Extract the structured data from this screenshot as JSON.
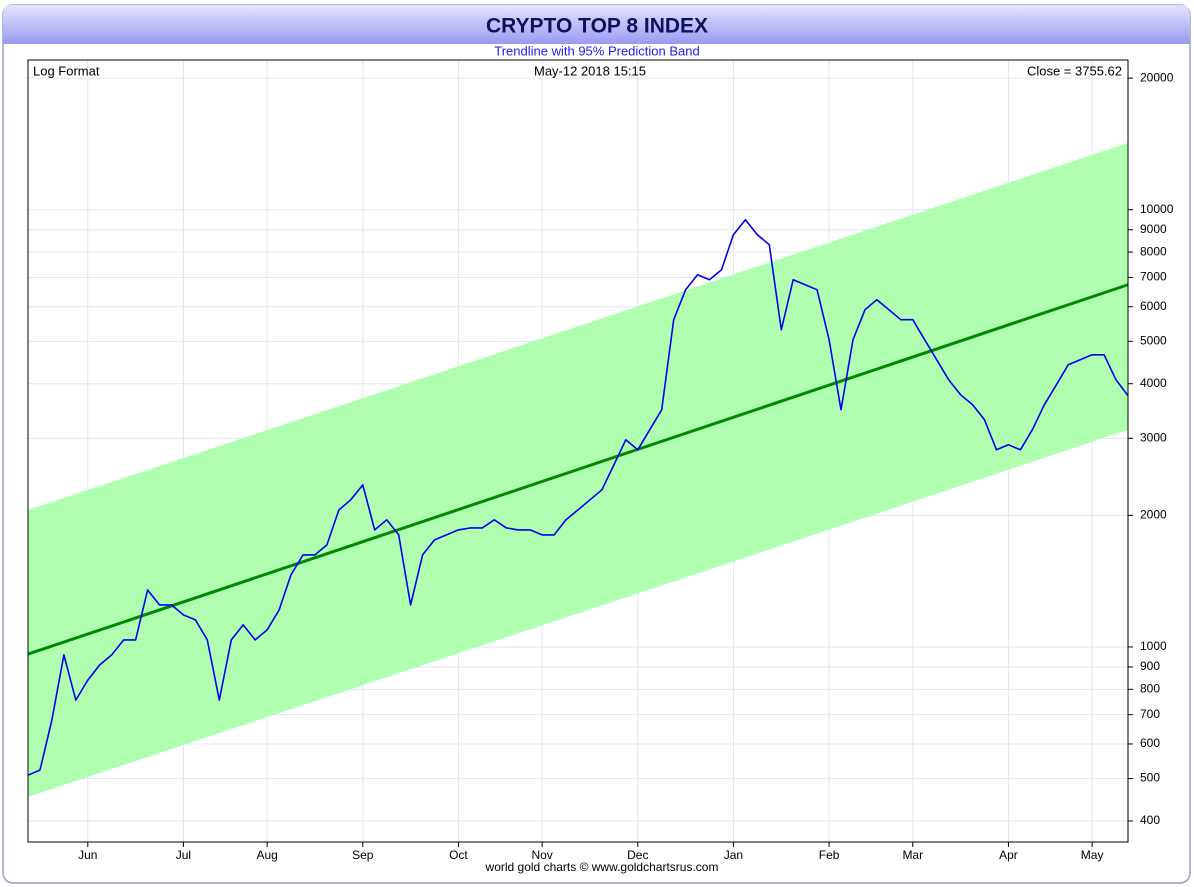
{
  "chart_data": {
    "type": "line",
    "title": "CRYPTO TOP 8 INDEX",
    "subtitle": "Trendline with 95% Prediction Band",
    "annotations": {
      "left": "Log Format",
      "center": "May-12  2018 15:15",
      "right": "Close = 3755.62"
    },
    "footer": "world gold charts © www.goldchartsrus.com",
    "categories": [
      null,
      null,
      null,
      null,
      null,
      "Jun",
      null,
      null,
      null,
      null,
      null,
      null,
      null,
      "Jul",
      null,
      null,
      null,
      null,
      null,
      null,
      "Aug",
      null,
      null,
      null,
      null,
      null,
      null,
      null,
      "Sep",
      null,
      null,
      null,
      null,
      null,
      null,
      null,
      "Oct",
      null,
      null,
      null,
      null,
      null,
      null,
      "Nov",
      null,
      null,
      null,
      null,
      null,
      null,
      null,
      "Dec",
      null,
      null,
      null,
      null,
      null,
      null,
      null,
      "Jan",
      null,
      null,
      null,
      null,
      null,
      null,
      null,
      "Feb",
      null,
      null,
      null,
      null,
      null,
      null,
      "Mar",
      null,
      null,
      null,
      null,
      null,
      null,
      null,
      "Apr",
      null,
      null,
      null,
      null,
      null,
      null,
      "May",
      null,
      null,
      null
    ],
    "series": [
      {
        "color": "#0000ee",
        "values": [
          509,
          523,
          681,
          959,
          756,
          840,
          910,
          959,
          1038,
          1038,
          1350,
          1248,
          1248,
          1184,
          1153,
          1038,
          756,
          1038,
          1123,
          1038,
          1094,
          1215,
          1462,
          1624,
          1624,
          1712,
          2058,
          2170,
          2348,
          1852,
          1953,
          1804,
          1248,
          1624,
          1757,
          1804,
          1852,
          1872,
          1872,
          1953,
          1872,
          1852,
          1852,
          1804,
          1804,
          1953,
          2058,
          2170,
          2288,
          2609,
          2977,
          2824,
          3138,
          3486,
          5602,
          6559,
          7100,
          6916,
          7290,
          8767,
          9487,
          8767,
          8316,
          5313,
          6916,
          6736,
          6559,
          5041,
          3486,
          5041,
          5905,
          6225,
          5905,
          5602,
          5602,
          5041,
          4537,
          4083,
          3773,
          3579,
          3307,
          2824,
          2899,
          2824,
          3138,
          3579,
          3976,
          4418,
          4537,
          4658,
          4658,
          4083,
          3755.62
        ]
      }
    ],
    "trendline": {
      "color": "#008800",
      "values": [
        963,
        6736
      ]
    },
    "band": {
      "color": "#b0ffb0",
      "upper": [
        2058,
        14220
      ],
      "lower": [
        454,
        3138
      ]
    },
    "log_scale": true,
    "grid": true,
    "ylim": [
      358,
      22000
    ],
    "yticks": [
      20000,
      10000,
      9000,
      8000,
      7000,
      6000,
      5000,
      4000,
      3000,
      2000,
      1000,
      900,
      800,
      700,
      600,
      500,
      400
    ]
  }
}
